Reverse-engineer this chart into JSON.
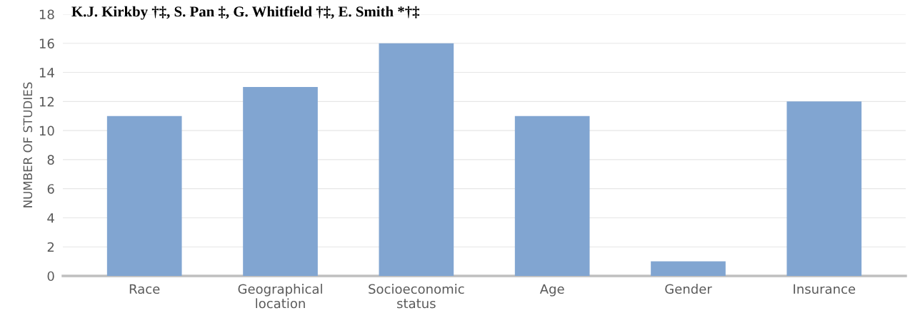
{
  "chart_data": {
    "type": "bar",
    "title": "K.J. Kirkby †‡, S. Pan ‡, G. Whitfield †‡, E. Smith *†‡",
    "categories": [
      "Race",
      "Geographical\nlocation",
      "Socioeconomic\nstatus",
      "Age",
      "Gender",
      "Insurance"
    ],
    "values": [
      11,
      13,
      16,
      11,
      1,
      12
    ],
    "color": "#81a5d1",
    "ylabel": "NUMBER OF STUDIES",
    "ylim": [
      0,
      18
    ],
    "yticks": [
      0,
      2,
      4,
      6,
      8,
      10,
      12,
      14,
      16,
      18
    ],
    "grid": "y"
  }
}
